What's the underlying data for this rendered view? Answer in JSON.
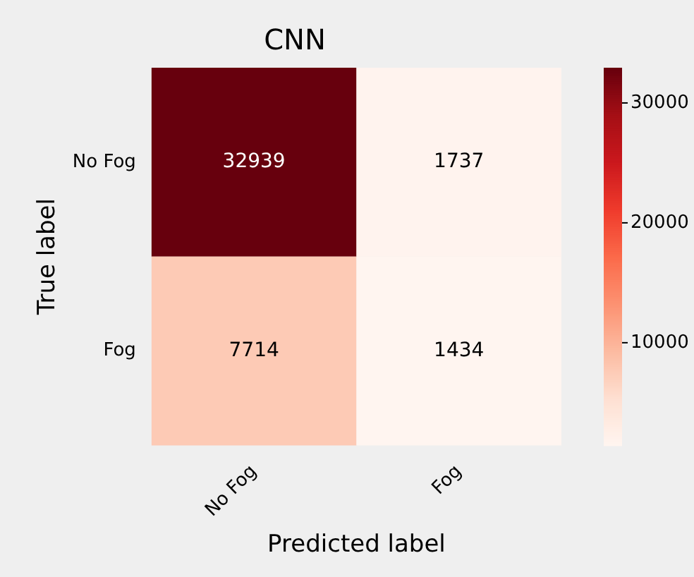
{
  "chart_data": {
    "type": "heatmap",
    "title": "CNN",
    "xlabel": "Predicted label",
    "ylabel": "True label",
    "categories": [
      "No Fog",
      "Fog"
    ],
    "y_categories": [
      "No Fog",
      "Fog"
    ],
    "cells": [
      [
        32939,
        1737
      ],
      [
        7714,
        1434
      ]
    ],
    "clim": [
      1434,
      32939
    ],
    "cticks": [
      10000,
      20000,
      30000
    ],
    "data_labels": true
  }
}
